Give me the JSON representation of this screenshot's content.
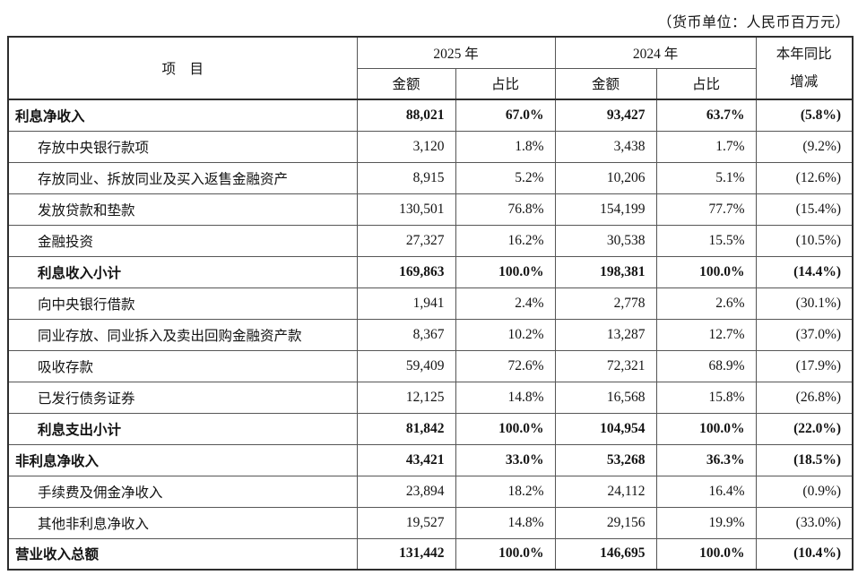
{
  "note": "（货币单位：人民币百万元）",
  "table": {
    "header": {
      "item": "项　目",
      "year_2025": "2025 年",
      "year_2024": "2024 年",
      "amount": "金额",
      "share": "占比",
      "change_line1": "本年同比",
      "change_line2": "增减"
    },
    "rows": [
      {
        "label": "利息净收入",
        "bold": true,
        "indent": false,
        "values": [
          "88,021",
          "67.0%",
          "93,427",
          "63.7%",
          "(5.8%)"
        ]
      },
      {
        "label": "存放中央银行款项",
        "bold": false,
        "indent": true,
        "values": [
          "3,120",
          "1.8%",
          "3,438",
          "1.7%",
          "(9.2%)"
        ]
      },
      {
        "label": "存放同业、拆放同业及买入返售金融资产",
        "bold": false,
        "indent": true,
        "values": [
          "8,915",
          "5.2%",
          "10,206",
          "5.1%",
          "(12.6%)"
        ]
      },
      {
        "label": "发放贷款和垫款",
        "bold": false,
        "indent": true,
        "values": [
          "130,501",
          "76.8%",
          "154,199",
          "77.7%",
          "(15.4%)"
        ]
      },
      {
        "label": "金融投资",
        "bold": false,
        "indent": true,
        "values": [
          "27,327",
          "16.2%",
          "30,538",
          "15.5%",
          "(10.5%)"
        ]
      },
      {
        "label": "利息收入小计",
        "bold": true,
        "indent": true,
        "values": [
          "169,863",
          "100.0%",
          "198,381",
          "100.0%",
          "(14.4%)"
        ]
      },
      {
        "label": "向中央银行借款",
        "bold": false,
        "indent": true,
        "values": [
          "1,941",
          "2.4%",
          "2,778",
          "2.6%",
          "(30.1%)"
        ]
      },
      {
        "label": "同业存放、同业拆入及卖出回购金融资产款",
        "bold": false,
        "indent": true,
        "values": [
          "8,367",
          "10.2%",
          "13,287",
          "12.7%",
          "(37.0%)"
        ]
      },
      {
        "label": "吸收存款",
        "bold": false,
        "indent": true,
        "values": [
          "59,409",
          "72.6%",
          "72,321",
          "68.9%",
          "(17.9%)"
        ]
      },
      {
        "label": "已发行债务证券",
        "bold": false,
        "indent": true,
        "values": [
          "12,125",
          "14.8%",
          "16,568",
          "15.8%",
          "(26.8%)"
        ]
      },
      {
        "label": "利息支出小计",
        "bold": true,
        "indent": true,
        "values": [
          "81,842",
          "100.0%",
          "104,954",
          "100.0%",
          "(22.0%)"
        ]
      },
      {
        "label": "非利息净收入",
        "bold": true,
        "indent": false,
        "values": [
          "43,421",
          "33.0%",
          "53,268",
          "36.3%",
          "(18.5%)"
        ]
      },
      {
        "label": "手续费及佣金净收入",
        "bold": false,
        "indent": true,
        "values": [
          "23,894",
          "18.2%",
          "24,112",
          "16.4%",
          "(0.9%)"
        ]
      },
      {
        "label": "其他非利息净收入",
        "bold": false,
        "indent": true,
        "values": [
          "19,527",
          "14.8%",
          "29,156",
          "19.9%",
          "(33.0%)"
        ]
      },
      {
        "label": "营业收入总额",
        "bold": true,
        "indent": false,
        "values": [
          "131,442",
          "100.0%",
          "146,695",
          "100.0%",
          "(10.4%)"
        ]
      }
    ]
  }
}
